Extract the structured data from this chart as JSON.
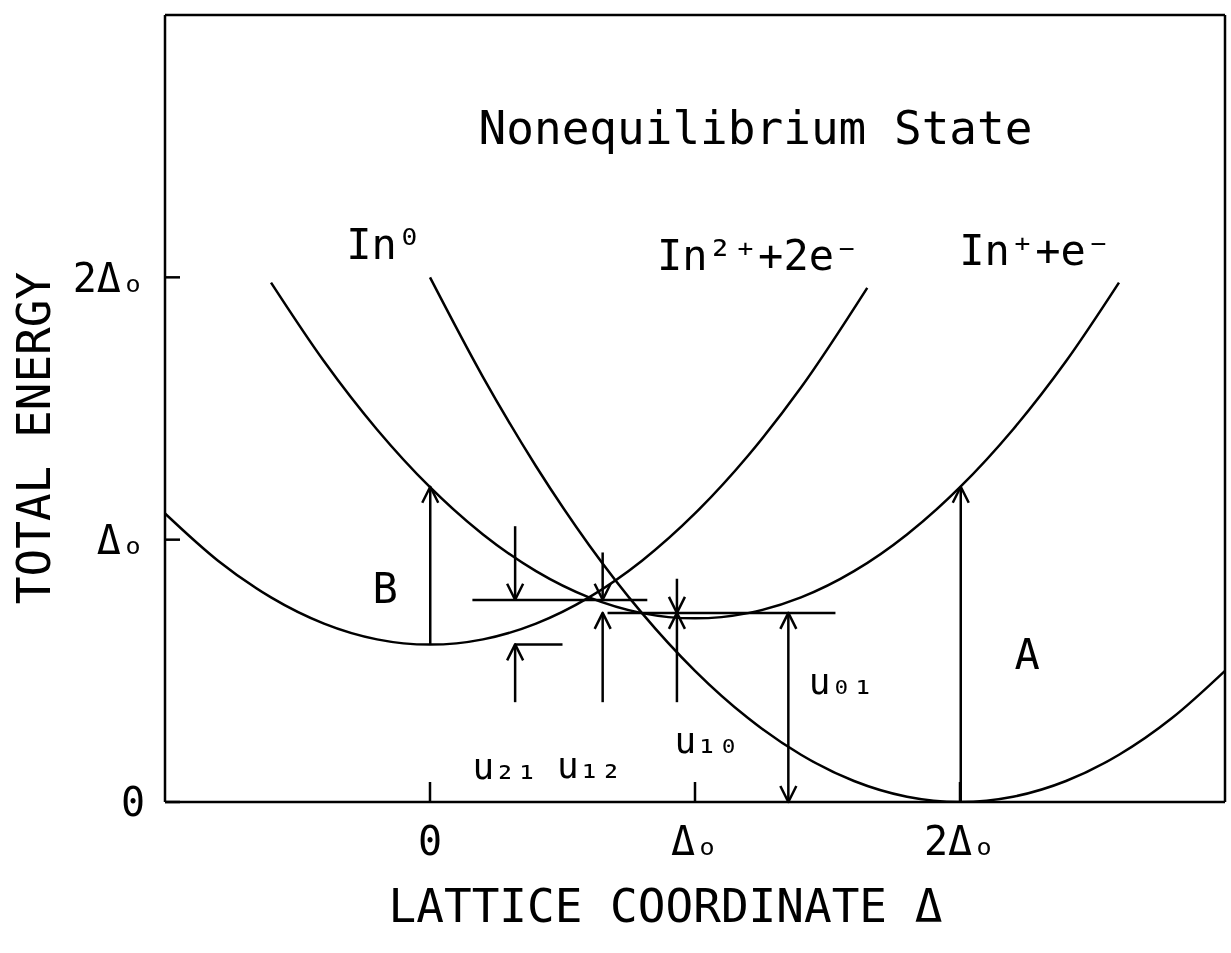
{
  "chart_data": {
    "type": "line",
    "title": "Nonequilibrium State",
    "xlabel": "LATTICE COORDINATE Δ",
    "ylabel": "TOTAL ENERGY",
    "xlim": [
      -1,
      3
    ],
    "xticks": [
      {
        "value": 0,
        "label": "0"
      },
      {
        "value": 1,
        "label": "Δₒ"
      },
      {
        "value": 2,
        "label": "2Δₒ"
      }
    ],
    "ylim": [
      0,
      3
    ],
    "yticks": [
      {
        "value": 0,
        "label": "0"
      },
      {
        "value": 1,
        "label": "Δₒ"
      },
      {
        "value": 2,
        "label": "2Δₒ"
      }
    ],
    "line_style": "solid",
    "series": [
      {
        "name": "In²⁺+2e⁻",
        "color": "#000000",
        "x": [
          -1,
          -0.8,
          -0.6,
          -0.4,
          -0.2,
          0,
          0.2,
          0.4,
          0.6,
          0.8,
          1.0,
          1.2,
          1.4,
          1.65
        ],
        "values": [
          1.1,
          0.92,
          0.78,
          0.68,
          0.62,
          0.6,
          0.62,
          0.68,
          0.78,
          0.92,
          1.1,
          1.32,
          1.58,
          1.96
        ]
      },
      {
        "name": "In⁰",
        "color": "#000000",
        "x": [
          0,
          0.2,
          0.4,
          0.6,
          0.8,
          1.0,
          1.2,
          1.4,
          1.6,
          1.8,
          2.0,
          2.2,
          2.4,
          2.6,
          2.8,
          3.0
        ],
        "values": [
          2.0,
          1.62,
          1.28,
          0.98,
          0.72,
          0.5,
          0.32,
          0.18,
          0.08,
          0.02,
          0,
          0.02,
          0.08,
          0.18,
          0.32,
          0.5
        ]
      },
      {
        "name": "In⁺+e⁻",
        "color": "#000000",
        "x": [
          -0.6,
          -0.4,
          -0.2,
          0,
          0.2,
          0.4,
          0.6,
          0.8,
          1.0,
          1.2,
          1.4,
          1.6,
          1.8,
          2.0,
          2.2,
          2.4,
          2.6
        ],
        "values": [
          1.98,
          1.68,
          1.42,
          1.2,
          1.02,
          0.88,
          0.78,
          0.72,
          0.7,
          0.72,
          0.78,
          0.88,
          1.02,
          1.2,
          1.42,
          1.68,
          1.98
        ]
      },
      {
        "color": "#000000",
        "x": [
          0.32,
          0.5
        ],
        "values": [
          0.6,
          0.6
        ]
      },
      {
        "color": "#000000",
        "x": [
          0.16,
          0.82
        ],
        "values": [
          0.77,
          0.77
        ]
      },
      {
        "color": "#000000",
        "x": [
          0.67,
          1.53
        ],
        "values": [
          0.72,
          0.72
        ]
      }
    ],
    "annotations": [
      {
        "text": "B",
        "x": 0,
        "y": 1.2
      },
      "A",
      {
        "text": "u₂₁",
        "x": 0.32,
        "y": 0.6
      },
      "u₁₂",
      {
        "text": "u₁₀",
        "x": 0.93,
        "y": 0.72
      },
      {
        "text": "u₀₁",
        "x": 1.35,
        "y": 0.72
      }
    ]
  }
}
